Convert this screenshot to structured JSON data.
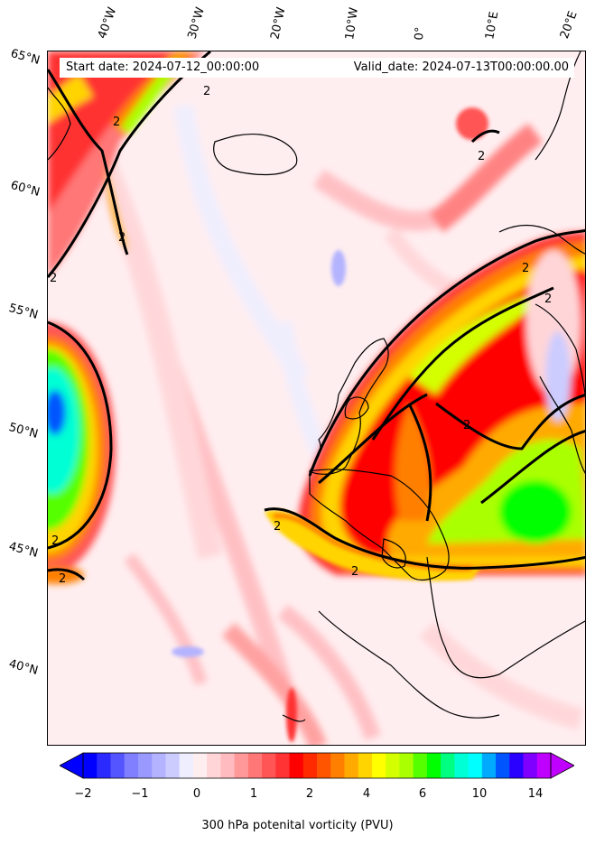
{
  "header": {
    "start_date": "Start date: 2024-07-12_00:00:00",
    "valid_date": "Valid_date: 2024-07-13T00:00:00.00"
  },
  "axes": {
    "lon_labels": [
      "40°W",
      "30°W",
      "20°W",
      "10°W",
      "0°",
      "10°E",
      "20°E"
    ],
    "lat_labels": [
      "65°N",
      "60°N",
      "55°N",
      "50°N",
      "45°N",
      "40°N"
    ]
  },
  "contour_label": "2",
  "colorbar": {
    "tick_labels": [
      "−2",
      "−1",
      "0",
      "1",
      "2",
      "4",
      "6",
      "10",
      "14"
    ],
    "title": "300 hPa potenital vorticity (PVU)",
    "colors": [
      "#0000ff",
      "#2a2aff",
      "#5555ff",
      "#7f7fff",
      "#9999ff",
      "#b3b3ff",
      "#ccccff",
      "#eeeeff",
      "#ffeef0",
      "#ffd5d8",
      "#ffbbbf",
      "#ff9999",
      "#ff7777",
      "#ff5555",
      "#ff3333",
      "#ff0000",
      "#ff2a00",
      "#ff5500",
      "#ff8000",
      "#ffaa00",
      "#ffd400",
      "#ffff00",
      "#d4ff00",
      "#aaff00",
      "#55ff00",
      "#00ff00",
      "#00ff80",
      "#00ffd4",
      "#00ffff",
      "#00aaff",
      "#0055ff",
      "#2a00ff",
      "#7f00ff",
      "#c000ff"
    ]
  }
}
